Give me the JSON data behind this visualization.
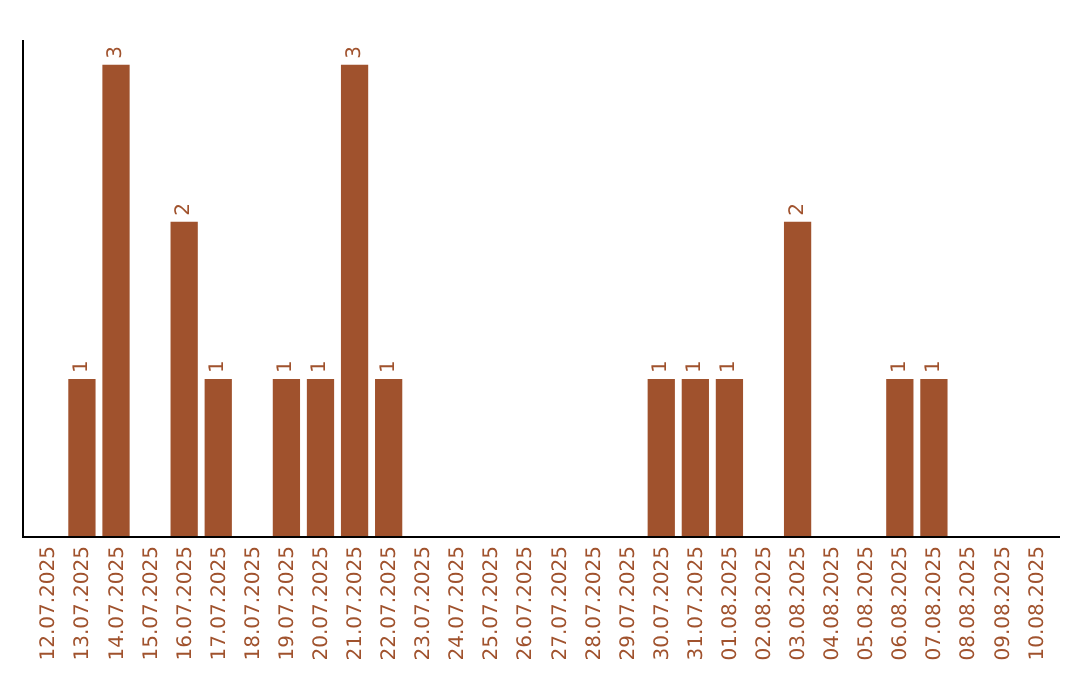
{
  "chart_data": {
    "type": "bar",
    "categories": [
      "12.07.2025",
      "13.07.2025",
      "14.07.2025",
      "15.07.2025",
      "16.07.2025",
      "17.07.2025",
      "18.07.2025",
      "19.07.2025",
      "20.07.2025",
      "21.07.2025",
      "22.07.2025",
      "23.07.2025",
      "24.07.2025",
      "25.07.2025",
      "26.07.2025",
      "27.07.2025",
      "28.07.2025",
      "29.07.2025",
      "30.07.2025",
      "31.07.2025",
      "01.08.2025",
      "02.08.2025",
      "03.08.2025",
      "04.08.2025",
      "05.08.2025",
      "06.08.2025",
      "07.08.2025",
      "08.08.2025",
      "09.08.2025",
      "10.08.2025"
    ],
    "values": [
      0,
      1,
      3,
      0,
      2,
      1,
      0,
      1,
      1,
      3,
      1,
      0,
      0,
      0,
      0,
      0,
      0,
      0,
      1,
      1,
      1,
      0,
      2,
      0,
      0,
      1,
      1,
      0,
      0,
      0
    ],
    "value_labels": [
      null,
      "1",
      "3",
      null,
      "2",
      "1",
      null,
      "1",
      "1",
      "3",
      "1",
      null,
      null,
      null,
      null,
      null,
      null,
      null,
      "1",
      "1",
      "1",
      null,
      "2",
      null,
      null,
      "1",
      "1",
      null,
      null,
      null
    ],
    "color": "#a0522d",
    "tick_labels": "x",
    "legend": false
  }
}
